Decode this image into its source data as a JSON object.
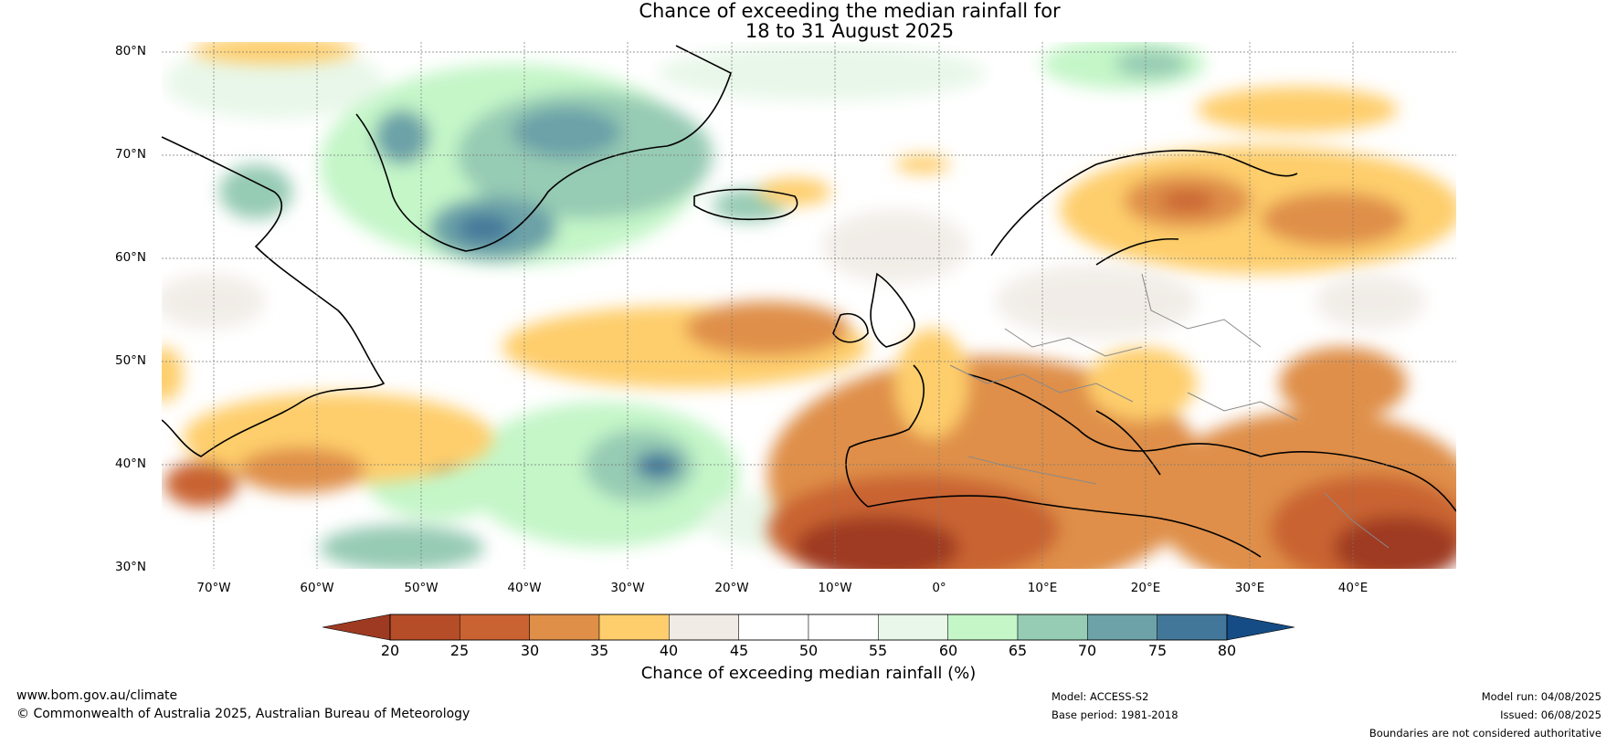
{
  "title": {
    "line1": "Chance of exceeding the median rainfall for",
    "line2": "18 to 31 August 2025"
  },
  "map": {
    "projection": "equirectangular",
    "lon_range": [
      -75,
      50
    ],
    "lat_range": [
      30,
      81
    ],
    "lat_labels": [
      "80°N",
      "70°N",
      "60°N",
      "50°N",
      "40°N",
      "30°N"
    ],
    "lon_labels": [
      "70°W",
      "60°W",
      "50°W",
      "40°W",
      "30°W",
      "20°W",
      "10°W",
      "0°",
      "10°E",
      "20°E",
      "30°E",
      "40°E"
    ],
    "regions": {
      "greenland": "wetter",
      "atlantic_south_west": "wetter",
      "north_africa_iberia": "drier",
      "mediterranean_middle_east": "drier",
      "central_atlantic_band": "drier",
      "scandinavia_east": "drier"
    }
  },
  "colorbar": {
    "ticks": [
      "20",
      "25",
      "30",
      "35",
      "40",
      "45",
      "50",
      "55",
      "60",
      "65",
      "70",
      "75",
      "80"
    ],
    "colors": [
      "#9f3a22",
      "#b44d28",
      "#c96331",
      "#df8f48",
      "#fece6c",
      "#f0ebe5",
      "#ffffff",
      "#ffffff",
      "#e8f7e9",
      "#c4f6c8",
      "#96cbb4",
      "#6ca2a8",
      "#42779a",
      "#154c85"
    ],
    "label": "Chance of exceeding median rainfall (%)"
  },
  "footer": {
    "website": "www.bom.gov.au/climate",
    "copyright": "© Commonwealth of Australia 2025, Australian Bureau of Meteorology",
    "model": "Model: ACCESS-S2",
    "base_period": "Base period: 1981-2018",
    "model_run": "Model run: 04/08/2025",
    "issued": "Issued: 06/08/2025",
    "disclaimer": "Boundaries are not considered authoritative"
  }
}
